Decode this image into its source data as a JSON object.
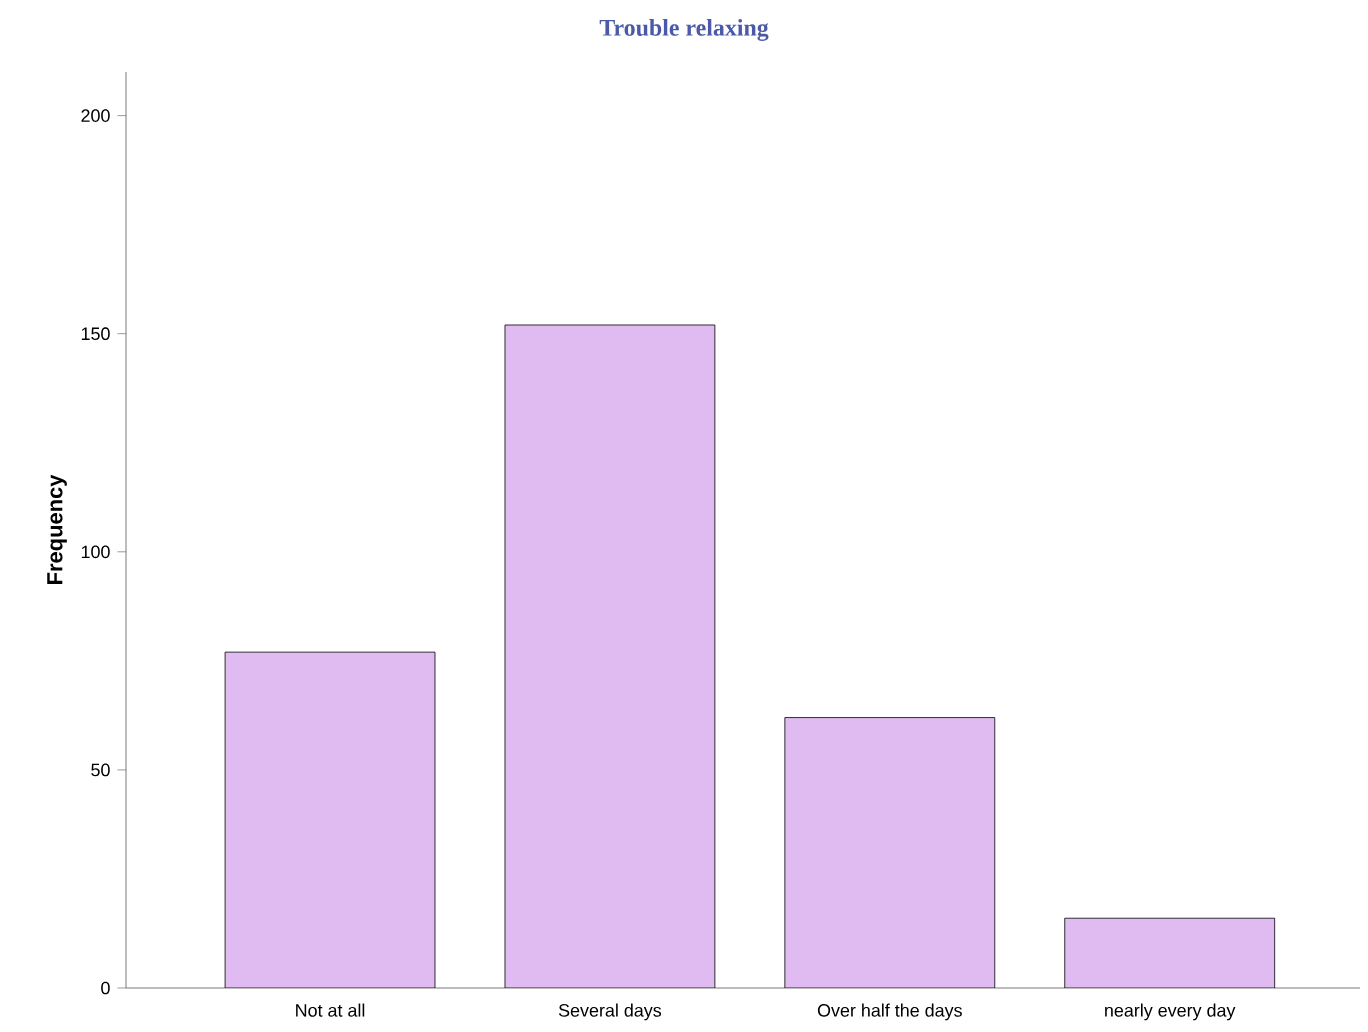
{
  "chart_data": {
    "type": "bar",
    "title": "Trouble relaxing",
    "ylabel": "Frequency",
    "categories": [
      "Not at all",
      "Several days",
      "Over half the days",
      "nearly every day"
    ],
    "values": [
      77,
      152,
      62,
      16
    ],
    "color": "#dfbbf2",
    "ylim": [
      0,
      210
    ],
    "yticks": [
      0,
      50,
      100,
      150,
      200
    ],
    "grid": false
  }
}
